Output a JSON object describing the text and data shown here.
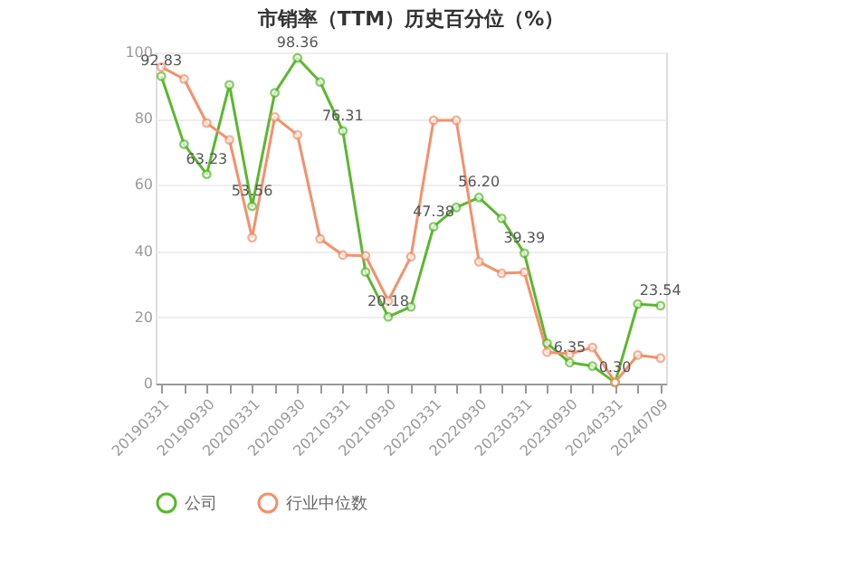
{
  "chart_data": {
    "type": "line",
    "title": "市销率（TTM）历史百分位（%）",
    "categories": [
      "20190331",
      null,
      "20190930",
      null,
      "20200331",
      null,
      "20200930",
      null,
      "20210331",
      null,
      "20210930",
      null,
      "20220331",
      null,
      "20220930",
      null,
      "20230331",
      null,
      "20230930",
      null,
      "20240331",
      null,
      "20240709"
    ],
    "series": [
      {
        "name": "公司",
        "color": "#5ab82e",
        "values": [
          92.83,
          72.3,
          63.23,
          90.2,
          53.56,
          87.8,
          98.36,
          91.1,
          76.31,
          33.7,
          20.18,
          23.2,
          47.38,
          53.2,
          56.2,
          49.9,
          39.39,
          12.2,
          6.35,
          5.3,
          0.3,
          24.0,
          23.54
        ],
        "value_labels": [
          "92.83",
          null,
          "63.23",
          null,
          "53.56",
          null,
          "98.36",
          null,
          "76.31",
          null,
          "20.18",
          null,
          "47.38",
          null,
          "56.20",
          null,
          "39.39",
          null,
          "6.35",
          null,
          "0.30",
          null,
          "23.54"
        ]
      },
      {
        "name": "行业中位数",
        "color": "#f5906b",
        "values": [
          95.6,
          92.0,
          78.7,
          73.6,
          44.1,
          80.5,
          75.1,
          43.7,
          38.8,
          38.6,
          25.0,
          38.3,
          79.5,
          79.5,
          36.8,
          33.3,
          33.6,
          9.5,
          9.0,
          10.9,
          0.4,
          8.6,
          7.7
        ]
      }
    ],
    "ylim": [
      0,
      100
    ],
    "yticks": [
      0,
      20,
      40,
      60,
      80,
      100
    ],
    "grid": "y",
    "legend": "bottom",
    "marker": "circle",
    "line_style": "solid"
  }
}
